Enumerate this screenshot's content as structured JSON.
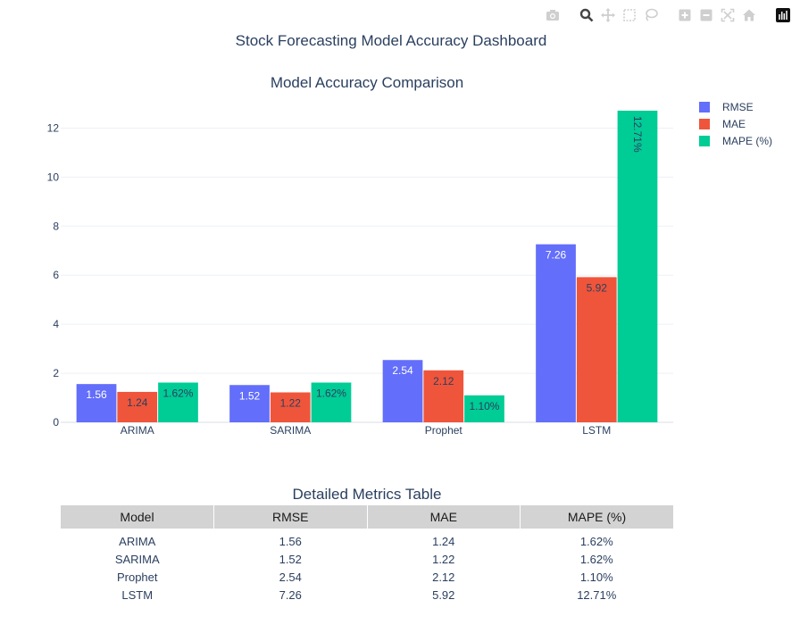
{
  "title": "Stock Forecasting Model Accuracy Dashboard",
  "modebar": {
    "icons": [
      "camera-icon",
      "zoom-icon",
      "pan-icon",
      "box-select-icon",
      "lasso-icon",
      "zoom-in-icon",
      "zoom-out-icon",
      "autoscale-icon",
      "home-icon",
      "plotly-logo-icon"
    ]
  },
  "chart_data": {
    "type": "bar",
    "title": "Model Accuracy Comparison",
    "categories": [
      "ARIMA",
      "SARIMA",
      "Prophet",
      "LSTM"
    ],
    "series": [
      {
        "name": "RMSE",
        "values": [
          1.56,
          1.52,
          2.54,
          7.26
        ],
        "labels": [
          "1.56",
          "1.52",
          "2.54",
          "7.26"
        ],
        "color": "#636efa",
        "label_color": "#ffffff"
      },
      {
        "name": "MAE",
        "values": [
          1.24,
          1.22,
          2.12,
          5.92
        ],
        "labels": [
          "1.24",
          "1.22",
          "2.12",
          "5.92"
        ],
        "color": "#ef553b",
        "label_color": "#2a3f5f"
      },
      {
        "name": "MAPE (%)",
        "values": [
          1.62,
          1.62,
          1.1,
          12.71
        ],
        "labels": [
          "1.62%",
          "1.62%",
          "1.10%",
          "12.71%"
        ],
        "color": "#00cc96",
        "label_color": "#2a3f5f"
      }
    ],
    "ylim": [
      0,
      13.4
    ],
    "yticks": [
      0,
      2,
      4,
      6,
      8,
      10,
      12
    ],
    "grid": true,
    "legend": "top-right"
  },
  "table": {
    "title": "Detailed Metrics Table",
    "headers": [
      "Model",
      "RMSE",
      "MAE",
      "MAPE (%)"
    ],
    "rows": [
      [
        "ARIMA",
        "1.56",
        "1.24",
        "1.62%"
      ],
      [
        "SARIMA",
        "1.52",
        "1.22",
        "1.62%"
      ],
      [
        "Prophet",
        "2.54",
        "2.12",
        "1.10%"
      ],
      [
        "LSTM",
        "7.26",
        "5.92",
        "12.71%"
      ]
    ]
  }
}
